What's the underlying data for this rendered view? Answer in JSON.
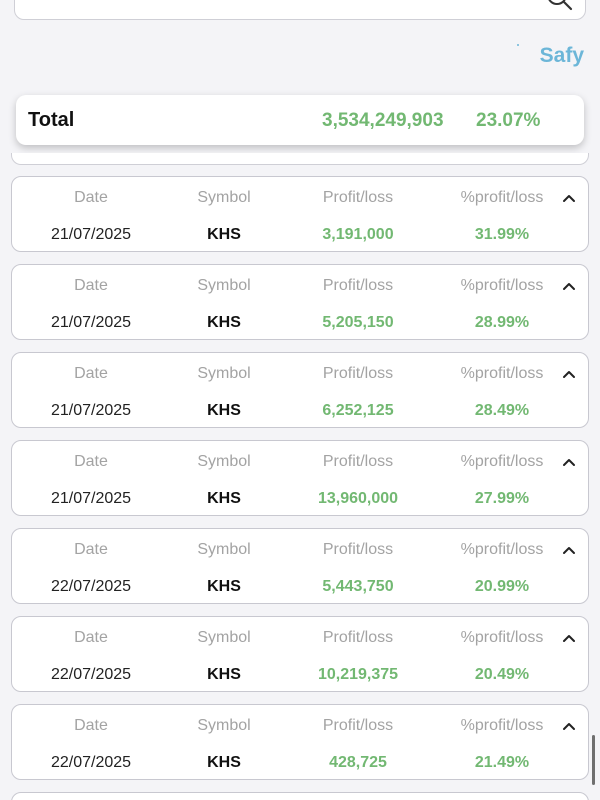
{
  "brand": {
    "name": "Safy"
  },
  "summary": {
    "label": "Total",
    "amount": "3,534,249,903",
    "percent": "23.07%"
  },
  "columns": {
    "date": "Date",
    "symbol": "Symbol",
    "profit_loss": "Profit/loss",
    "percent_profit_loss": "%profit/loss"
  },
  "rows": [
    {
      "date": "21/07/2025",
      "symbol": "KHS",
      "profit_loss": "3,191,000",
      "percent": "31.99%"
    },
    {
      "date": "21/07/2025",
      "symbol": "KHS",
      "profit_loss": "5,205,150",
      "percent": "28.99%"
    },
    {
      "date": "21/07/2025",
      "symbol": "KHS",
      "profit_loss": "6,252,125",
      "percent": "28.49%"
    },
    {
      "date": "21/07/2025",
      "symbol": "KHS",
      "profit_loss": "13,960,000",
      "percent": "27.99%"
    },
    {
      "date": "22/07/2025",
      "symbol": "KHS",
      "profit_loss": "5,443,750",
      "percent": "20.99%"
    },
    {
      "date": "22/07/2025",
      "symbol": "KHS",
      "profit_loss": "10,219,375",
      "percent": "20.49%"
    },
    {
      "date": "22/07/2025",
      "symbol": "KHS",
      "profit_loss": "428,725",
      "percent": "21.49%"
    }
  ],
  "colors": {
    "positive": "#72b872",
    "brand": "#6cb6d8",
    "header_text": "#a3a3a3"
  },
  "icons": {
    "search": "search-icon",
    "expand_toggle": "chevron-up-icon"
  }
}
